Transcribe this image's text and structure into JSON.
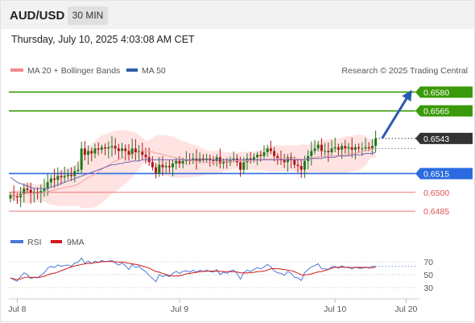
{
  "header": {
    "symbol": "AUD/USD",
    "timeframe": "30 MIN"
  },
  "datetime": "Thursday, July 10, 2025 4:03:08 AM CET",
  "legend": {
    "ma20": "MA 20 + Bollinger Bands",
    "ma50": "MA 50"
  },
  "watermark": "Research © 2025 Trading Central",
  "colors": {
    "resistance": "#3a9a0a",
    "support": "#2b6be0",
    "pivot": "#e87878",
    "price": "#333333",
    "up": "#1e7a1e",
    "down": "#b01818",
    "band": "#ffdede",
    "ma20": "#f0a0a0",
    "ma50": "#6f67b0",
    "rsi": "#4a78d8",
    "rsi_ma": "#d01818",
    "arrow": "#2a5ab0"
  },
  "levels": [
    {
      "value": 0.658,
      "label": "0.6580",
      "kind": "resistance",
      "style": "solid"
    },
    {
      "value": 0.6565,
      "label": "0.6565",
      "kind": "resistance",
      "style": "solid"
    },
    {
      "value": 0.6543,
      "label": "0.6543",
      "kind": "price",
      "style": "dotted"
    },
    {
      "value": 0.6515,
      "label": "0.6515",
      "kind": "support",
      "style": "solid"
    },
    {
      "value": 0.65,
      "label": "0.6500",
      "kind": "pivot",
      "style": "thin"
    },
    {
      "value": 0.6485,
      "label": "0.6485",
      "kind": "pivot",
      "style": "thin"
    }
  ],
  "rsi_panel": {
    "label": "RSI",
    "ma_label": "9MA",
    "ticks": [
      70,
      50,
      30
    ],
    "last": 63
  },
  "x_axis": {
    "labels": [
      "Jul 8",
      "Jul 9",
      "Jul 10",
      "Jul 20"
    ],
    "bar_index": [
      2,
      50,
      96,
      117
    ]
  },
  "chart_data": {
    "type": "candlestick",
    "symbol": "AUD/USD",
    "interval": "30 MIN",
    "bar_count": 109,
    "ylim": [
      0.6478,
      0.6586
    ],
    "close": [
      0.6498,
      0.6497,
      0.6496,
      0.6499,
      0.6503,
      0.6502,
      0.6499,
      0.65,
      0.6499,
      0.6501,
      0.6503,
      0.6508,
      0.6511,
      0.651,
      0.6513,
      0.6512,
      0.6513,
      0.6514,
      0.6513,
      0.6517,
      0.6518,
      0.6535,
      0.653,
      0.6533,
      0.6531,
      0.6535,
      0.6534,
      0.6536,
      0.6535,
      0.6536,
      0.6537,
      0.6535,
      0.6533,
      0.6535,
      0.6533,
      0.653,
      0.6535,
      0.6532,
      0.6533,
      0.653,
      0.6528,
      0.6524,
      0.652,
      0.6515,
      0.6522,
      0.652,
      0.6521,
      0.652,
      0.6523,
      0.6525,
      0.6523,
      0.6525,
      0.6526,
      0.6525,
      0.6527,
      0.6525,
      0.6527,
      0.6526,
      0.6527,
      0.6526,
      0.6525,
      0.6528,
      0.6523,
      0.6525,
      0.6524,
      0.6526,
      0.6527,
      0.6524,
      0.6518,
      0.6524,
      0.6527,
      0.6526,
      0.6528,
      0.653,
      0.6529,
      0.6532,
      0.6535,
      0.6533,
      0.6529,
      0.6527,
      0.6526,
      0.6524,
      0.6528,
      0.6526,
      0.6522,
      0.6521,
      0.6518,
      0.6525,
      0.6529,
      0.6533,
      0.6535,
      0.6538,
      0.6533,
      0.6533,
      0.6532,
      0.6535,
      0.6536,
      0.6534,
      0.6537,
      0.6535,
      0.6536,
      0.6534,
      0.6536,
      0.6535,
      0.6535,
      0.6536,
      0.6535,
      0.6537,
      0.6543
    ],
    "ma50": [
      0.6512,
      0.651,
      0.6508,
      0.6507,
      0.6506,
      0.6505,
      0.6504,
      0.6503,
      0.6503,
      0.6503,
      0.6503,
      0.6503,
      0.6504,
      0.6505,
      0.6506,
      0.6507,
      0.6508,
      0.6509,
      0.651,
      0.6511,
      0.6512,
      0.6513,
      0.6514,
      0.6515,
      0.6516,
      0.6517,
      0.6518,
      0.6519,
      0.652,
      0.6521,
      0.6522,
      0.6522,
      0.6523,
      0.6523,
      0.6524,
      0.6524,
      0.6525,
      0.6525,
      0.6525,
      0.6526,
      0.6526,
      0.6526,
      0.6526,
      0.6526,
      0.6526,
      0.6526,
      0.6526,
      0.6526,
      0.6526,
      0.6526,
      0.6526,
      0.6526,
      0.6526,
      0.6526,
      0.6526,
      0.6526,
      0.6526,
      0.6526,
      0.6526,
      0.6526,
      0.6526,
      0.6526,
      0.6526,
      0.6526,
      0.6526,
      0.6526,
      0.6526,
      0.6526,
      0.6526,
      0.6526,
      0.6526,
      0.6526,
      0.6526,
      0.6526,
      0.6526,
      0.6526,
      0.6526,
      0.6526,
      0.6526,
      0.6526,
      0.6526,
      0.6526,
      0.6526,
      0.6526,
      0.6526,
      0.6526,
      0.6526,
      0.6526,
      0.6527,
      0.6527,
      0.6527,
      0.6527,
      0.6527,
      0.6528,
      0.6528,
      0.6528,
      0.6528,
      0.6529,
      0.6529,
      0.6529,
      0.6529,
      0.653,
      0.653,
      0.653,
      0.653,
      0.6531,
      0.6531,
      0.6531,
      0.6532
    ],
    "rsi": [
      45,
      42,
      40,
      47,
      53,
      50,
      44,
      46,
      45,
      49,
      53,
      60,
      63,
      61,
      65,
      63,
      64,
      65,
      63,
      68,
      69,
      76,
      68,
      71,
      67,
      71,
      69,
      72,
      70,
      71,
      72,
      68,
      65,
      68,
      64,
      58,
      66,
      61,
      63,
      58,
      55,
      49,
      44,
      39,
      50,
      47,
      49,
      47,
      52,
      55,
      52,
      55,
      56,
      54,
      57,
      54,
      57,
      55,
      57,
      55,
      54,
      58,
      50,
      54,
      52,
      56,
      57,
      52,
      43,
      53,
      57,
      55,
      58,
      61,
      59,
      62,
      66,
      62,
      56,
      53,
      52,
      49,
      55,
      52,
      46,
      45,
      41,
      53,
      58,
      62,
      64,
      67,
      59,
      59,
      58,
      62,
      63,
      60,
      64,
      61,
      62,
      59,
      62,
      60,
      60,
      62,
      60,
      63,
      63
    ]
  }
}
